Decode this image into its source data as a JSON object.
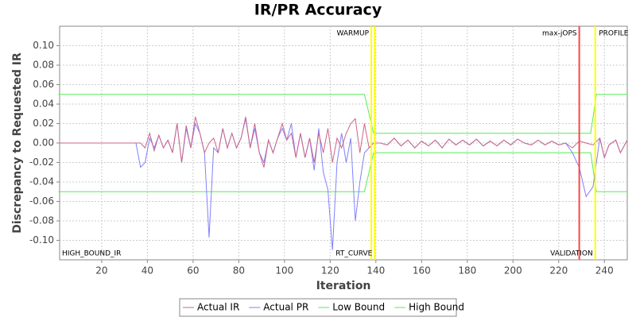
{
  "chart_data": {
    "type": "line",
    "title": "IR/PR Accuracy",
    "x_label": "Iteration",
    "y_label": "Discrepancy to Requested IR",
    "xlim": [
      1.6,
      250
    ],
    "ylim": [
      -0.12,
      0.12
    ],
    "xticks": [
      20,
      40,
      60,
      80,
      100,
      120,
      140,
      160,
      180,
      200,
      220,
      240
    ],
    "yticks": [
      {
        "value": -0.1,
        "label": "-0.10"
      },
      {
        "value": -0.08,
        "label": "-0.08"
      },
      {
        "value": -0.06,
        "label": "-0.06"
      },
      {
        "value": -0.04,
        "label": "-0.04"
      },
      {
        "value": -0.02,
        "label": "-0.02"
      },
      {
        "value": 0,
        "label": "0.00"
      },
      {
        "value": 0.02,
        "label": "0.02"
      },
      {
        "value": 0.04,
        "label": "0.04"
      },
      {
        "value": 0.06,
        "label": "0.06"
      },
      {
        "value": 0.08,
        "label": "0.08"
      },
      {
        "value": 0.1,
        "label": "0.10"
      }
    ],
    "grid": true,
    "legend": "bottom",
    "series": [
      {
        "name": "Actual IR",
        "color": "#cc6688",
        "x": [
          1,
          35,
          37,
          39,
          41,
          43,
          45,
          47,
          49,
          51,
          53,
          55,
          57,
          59,
          61,
          63,
          65,
          67,
          69,
          71,
          73,
          75,
          77,
          79,
          81,
          83,
          85,
          87,
          89,
          91,
          93,
          95,
          97,
          99,
          101,
          103,
          105,
          107,
          109,
          111,
          113,
          115,
          117,
          119,
          121,
          123,
          125,
          127,
          129,
          131,
          133,
          135,
          137,
          139,
          142,
          145,
          148,
          151,
          154,
          157,
          160,
          163,
          166,
          169,
          172,
          175,
          178,
          181,
          184,
          187,
          190,
          193,
          196,
          199,
          202,
          205,
          208,
          211,
          214,
          217,
          220,
          223,
          226,
          229,
          232,
          235,
          238,
          240,
          242,
          245,
          247,
          250
        ],
        "values": [
          0,
          0,
          0,
          -0.005,
          0.01,
          -0.008,
          0.008,
          -0.005,
          0.003,
          -0.01,
          0.02,
          -0.02,
          0.018,
          -0.005,
          0.027,
          0.01,
          -0.01,
          0,
          0.005,
          -0.01,
          0.015,
          -0.005,
          0.01,
          -0.005,
          0.005,
          0.027,
          -0.005,
          0.02,
          -0.01,
          -0.025,
          0.003,
          -0.01,
          0.005,
          0.02,
          0.003,
          0.01,
          -0.015,
          0.01,
          -0.015,
          0.005,
          -0.02,
          0.01,
          -0.01,
          0.015,
          -0.02,
          0.005,
          -0.005,
          0.01,
          0.02,
          0.025,
          -0.01,
          0.02,
          -0.005,
          0,
          0,
          -0.002,
          0.005,
          -0.003,
          0.003,
          -0.005,
          0.002,
          -0.003,
          0.003,
          -0.005,
          0.004,
          -0.002,
          0.003,
          -0.002,
          0.004,
          -0.003,
          0.002,
          -0.003,
          0.003,
          -0.002,
          0.004,
          0,
          -0.002,
          0.003,
          -0.002,
          0.002,
          -0.002,
          0,
          -0.005,
          0.002,
          0,
          -0.002,
          0.005,
          -0.015,
          -0.002,
          0.003,
          -0.01,
          0.003
        ]
      },
      {
        "name": "Actual PR",
        "color": "#8080ff",
        "x": [
          1,
          35,
          37,
          39,
          41,
          43,
          45,
          47,
          49,
          51,
          53,
          55,
          57,
          59,
          61,
          63,
          65,
          67,
          69,
          71,
          73,
          75,
          77,
          79,
          81,
          83,
          85,
          87,
          89,
          91,
          93,
          95,
          97,
          99,
          101,
          103,
          105,
          107,
          109,
          111,
          113,
          115,
          117,
          119,
          121,
          123,
          125,
          127,
          129,
          131,
          133,
          135,
          137,
          139,
          142,
          145,
          148,
          151,
          154,
          157,
          160,
          163,
          166,
          169,
          172,
          175,
          178,
          181,
          184,
          187,
          190,
          193,
          196,
          199,
          202,
          205,
          208,
          211,
          214,
          217,
          220,
          223,
          226,
          229,
          232,
          235,
          238,
          240,
          242,
          245,
          247,
          250
        ],
        "values": [
          0,
          0,
          -0.025,
          -0.02,
          0.005,
          -0.005,
          0.008,
          -0.005,
          0.003,
          -0.01,
          0.02,
          -0.02,
          0.015,
          -0.005,
          0.02,
          0.01,
          -0.01,
          -0.097,
          -0.005,
          -0.01,
          0.015,
          -0.005,
          0.01,
          -0.005,
          0.005,
          0.025,
          -0.005,
          0.015,
          -0.01,
          -0.02,
          0.003,
          -0.01,
          0.005,
          0.015,
          0.003,
          0.02,
          -0.015,
          0.01,
          -0.015,
          0.005,
          -0.028,
          0.015,
          -0.03,
          -0.048,
          -0.11,
          -0.02,
          0.01,
          -0.02,
          0.005,
          -0.08,
          -0.04,
          -0.01,
          -0.005,
          0,
          0,
          -0.002,
          0.005,
          -0.003,
          0.003,
          -0.005,
          0.002,
          -0.003,
          0.003,
          -0.005,
          0.004,
          -0.002,
          0.003,
          -0.002,
          0.004,
          -0.003,
          0.002,
          -0.003,
          0.003,
          -0.002,
          0.004,
          0,
          -0.002,
          0.003,
          -0.002,
          0.002,
          -0.002,
          0,
          -0.01,
          -0.025,
          -0.055,
          -0.045,
          0.005,
          -0.015,
          -0.002,
          0.003,
          -0.01,
          0.003
        ]
      },
      {
        "name": "Low Bound",
        "color": "#55ee55",
        "x": [
          1,
          135,
          139,
          234,
          236.5,
          250
        ],
        "values": [
          -0.05,
          -0.05,
          -0.01,
          -0.01,
          -0.05,
          -0.05
        ]
      },
      {
        "name": "High Bound",
        "color": "#55ee55",
        "x": [
          1,
          135,
          139,
          234,
          236.5,
          250
        ],
        "values": [
          0.05,
          0.05,
          0.01,
          0.01,
          0.05,
          0.05
        ]
      }
    ],
    "markers": [
      {
        "label": "HIGH_BOUND_IR",
        "x": 1.6,
        "position": "bottom",
        "anchor": "start"
      },
      {
        "label": "WARMUP",
        "x": 138,
        "color": "#ffff00",
        "position": "top",
        "anchor": "end"
      },
      {
        "label": "RT_CURVE",
        "x": 139.5,
        "color": "#ffff00",
        "position": "bottom",
        "anchor": "end"
      },
      {
        "label": "max-jOPS",
        "x": 229,
        "color": "#ff4444",
        "position": "top",
        "anchor": "end"
      },
      {
        "label": "VALIDATION",
        "x": 236,
        "color": "#ffff00",
        "position": "bottom",
        "anchor": "end"
      },
      {
        "label": "PROFILE",
        "x": 236.5,
        "position": "top",
        "anchor": "start"
      }
    ]
  }
}
